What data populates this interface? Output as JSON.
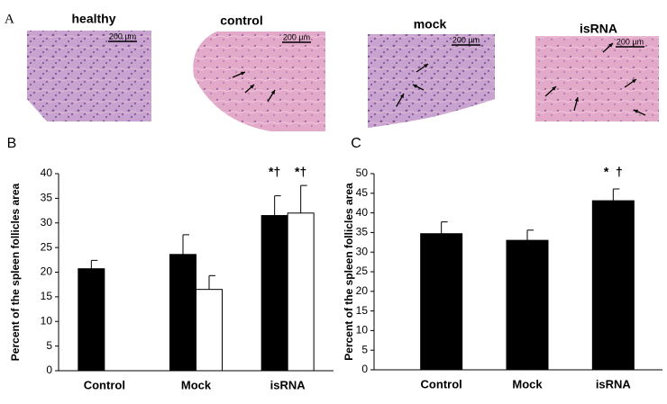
{
  "panels": {
    "label": "A",
    "images": [
      {
        "title": "healthy",
        "scale": "200 µm"
      },
      {
        "title": "control",
        "scale": "200 µm"
      },
      {
        "title": "mock",
        "scale": "200 µm"
      },
      {
        "title": "isRNA",
        "scale": "200 µm"
      }
    ]
  },
  "chart_data": [
    {
      "type": "bar",
      "panel": "B",
      "ylabel": "Percent of the  spleen follicles area",
      "categories": [
        "Control",
        "Mock",
        "isRNA"
      ],
      "series": [
        {
          "color": "#000000",
          "values": [
            20.7,
            23.6,
            31.5
          ],
          "errors": [
            1.7,
            4.0,
            4.0
          ],
          "annotations": [
            null,
            null,
            "*†"
          ]
        },
        {
          "color": "#ffffff",
          "values": [
            null,
            16.5,
            32.0
          ],
          "errors": [
            null,
            2.8,
            5.6
          ],
          "annotations": [
            null,
            null,
            "*†"
          ]
        }
      ],
      "ylim": [
        0,
        40
      ],
      "yticks": [
        0,
        5,
        10,
        15,
        20,
        25,
        30,
        35,
        40
      ]
    },
    {
      "type": "bar",
      "panel": "C",
      "ylabel": "Percent of the  spleen follicles area",
      "categories": [
        "Control",
        "Mock",
        "isRNA"
      ],
      "series": [
        {
          "color": "#000000",
          "values": [
            34.7,
            33.0,
            43.1
          ],
          "errors": [
            3.0,
            2.6,
            3.0
          ],
          "annotations": [
            null,
            null,
            "*  †"
          ]
        }
      ],
      "ylim": [
        0,
        50
      ],
      "yticks": [
        0,
        5,
        10,
        15,
        20,
        25,
        30,
        35,
        40,
        45,
        50
      ]
    }
  ]
}
